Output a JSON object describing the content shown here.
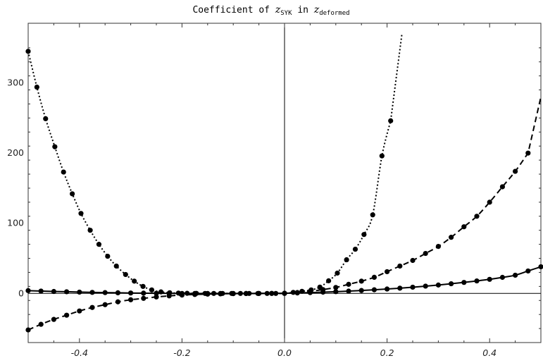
{
  "chart_data": {
    "type": "line",
    "title": {
      "prefix": "Coefficient of ",
      "sym1": "z",
      "sub1": "SYK",
      "mid": " in ",
      "sym2": "z",
      "sub2": "deformed"
    },
    "xlabel": "",
    "ylabel": "",
    "xlim": [
      -0.5,
      0.5
    ],
    "ylim": [
      -70,
      385
    ],
    "x_ticks": [
      -0.4,
      -0.2,
      0.0,
      0.2,
      0.4
    ],
    "x_tick_labels": [
      "-0.4",
      "-0.2",
      "0.0",
      "0.2",
      "0.4"
    ],
    "y_ticks": [
      0,
      100,
      200,
      300
    ],
    "y_tick_labels": [
      "0",
      "100",
      "200",
      "300"
    ],
    "grid": false,
    "legend": "none",
    "series": [
      {
        "style": "solid",
        "x": [
          -0.5,
          -0.475,
          -0.45,
          -0.425,
          -0.4,
          -0.375,
          -0.35,
          -0.325,
          -0.3,
          -0.275,
          -0.25,
          -0.225,
          -0.2,
          -0.175,
          -0.15,
          -0.125,
          -0.1,
          -0.075,
          -0.05,
          -0.025,
          0.0,
          0.025,
          0.05,
          0.075,
          0.1,
          0.125,
          0.15,
          0.175,
          0.2,
          0.225,
          0.25,
          0.275,
          0.3,
          0.325,
          0.35,
          0.375,
          0.4,
          0.425,
          0.45,
          0.475,
          0.5
        ],
        "y": [
          4,
          3.4,
          2.8,
          2.4,
          1.9,
          1.5,
          1.2,
          0.9,
          0.6,
          0.4,
          0.2,
          0.1,
          0.0,
          -0.1,
          -0.1,
          -0.1,
          -0.1,
          -0.1,
          0.0,
          0.1,
          0.3,
          0.7,
          1.2,
          1.8,
          2.5,
          3.3,
          4.2,
          5.2,
          6.3,
          7.5,
          8.9,
          10.4,
          12.0,
          13.8,
          15.7,
          17.8,
          20.1,
          22.9,
          26.0,
          32.0,
          38.0
        ]
      },
      {
        "style": "dashed",
        "x": [
          -0.5,
          -0.475,
          -0.45,
          -0.425,
          -0.4,
          -0.375,
          -0.35,
          -0.325,
          -0.3,
          -0.275,
          -0.25,
          -0.225,
          -0.2,
          -0.175,
          -0.15,
          -0.125,
          -0.1,
          -0.075,
          -0.05,
          -0.025,
          0.0,
          0.025,
          0.05,
          0.075,
          0.1,
          0.125,
          0.15,
          0.175,
          0.2,
          0.225,
          0.25,
          0.275,
          0.3,
          0.325,
          0.35,
          0.375,
          0.4,
          0.425,
          0.45,
          0.475
        ],
        "y": [
          -52,
          -44,
          -37,
          -31,
          -25,
          -20,
          -16,
          -12,
          -9,
          -7,
          -5,
          -3.5,
          -2.3,
          -1.5,
          -1,
          -0.6,
          -0.3,
          -0.1,
          0,
          0,
          0.1,
          1.3,
          3,
          5.5,
          8.5,
          13,
          17.5,
          23,
          31,
          39,
          47,
          57,
          67,
          80,
          95,
          110,
          130,
          152,
          174,
          200
        ]
      },
      {
        "style": "dotted",
        "x": [
          -0.5,
          -0.483,
          -0.466,
          -0.448,
          -0.431,
          -0.414,
          -0.397,
          -0.379,
          -0.362,
          -0.345,
          -0.328,
          -0.31,
          -0.293,
          -0.276,
          -0.259,
          -0.241,
          -0.224,
          -0.207,
          -0.19,
          -0.172,
          -0.155,
          -0.138,
          -0.121,
          -0.103,
          -0.086,
          -0.069,
          -0.052,
          -0.034,
          -0.017,
          0.0,
          0.017,
          0.034,
          0.052,
          0.069,
          0.086,
          0.103,
          0.121,
          0.138,
          0.155,
          0.172,
          0.19,
          0.207
        ],
        "y": [
          345,
          294,
          249,
          209,
          173,
          142,
          114,
          90,
          70,
          53,
          39,
          27,
          17.5,
          10,
          5,
          2.2,
          1,
          0.5,
          0.2,
          0.1,
          0,
          0,
          0,
          0,
          0,
          0,
          0,
          0,
          0,
          0,
          1.5,
          3,
          5,
          9,
          18,
          29,
          48,
          63,
          84,
          112,
          196,
          246
        ]
      }
    ]
  }
}
